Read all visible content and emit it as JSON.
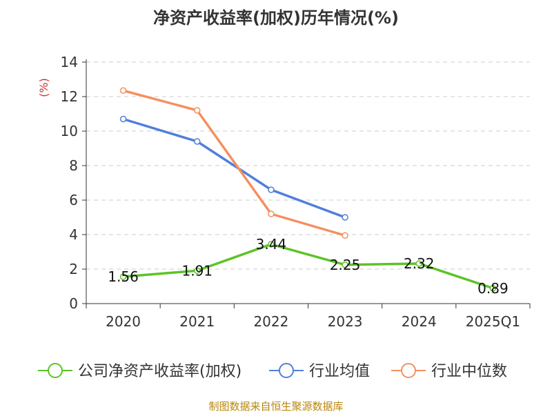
{
  "chart_data": {
    "type": "line",
    "title": "净资产收益率(加权)历年情况(%)",
    "ylabel": "(%)",
    "xlabel": "",
    "categories": [
      "2020",
      "2021",
      "2022",
      "2023",
      "2024",
      "2025Q1"
    ],
    "ylim": [
      0,
      14
    ],
    "yticks": [
      0,
      2,
      4,
      6,
      8,
      10,
      12,
      14
    ],
    "grid": true,
    "legend_position": "bottom",
    "series": [
      {
        "name": "公司净资产收益率(加权)",
        "color": "#5cc326",
        "values": [
          1.56,
          1.91,
          3.44,
          2.25,
          2.32,
          0.89
        ],
        "labels": [
          "1.56",
          "1.91",
          "3.44",
          "2.25",
          "2.32",
          "0.89"
        ]
      },
      {
        "name": "行业均值",
        "color": "#4f7fdc",
        "values": [
          10.7,
          9.4,
          6.6,
          5.0,
          null,
          null
        ]
      },
      {
        "name": "行业中位数",
        "color": "#f4905f",
        "values": [
          12.35,
          11.2,
          5.2,
          3.95,
          null,
          null
        ]
      }
    ]
  },
  "source_note": "制图数据来自恒生聚源数据库"
}
